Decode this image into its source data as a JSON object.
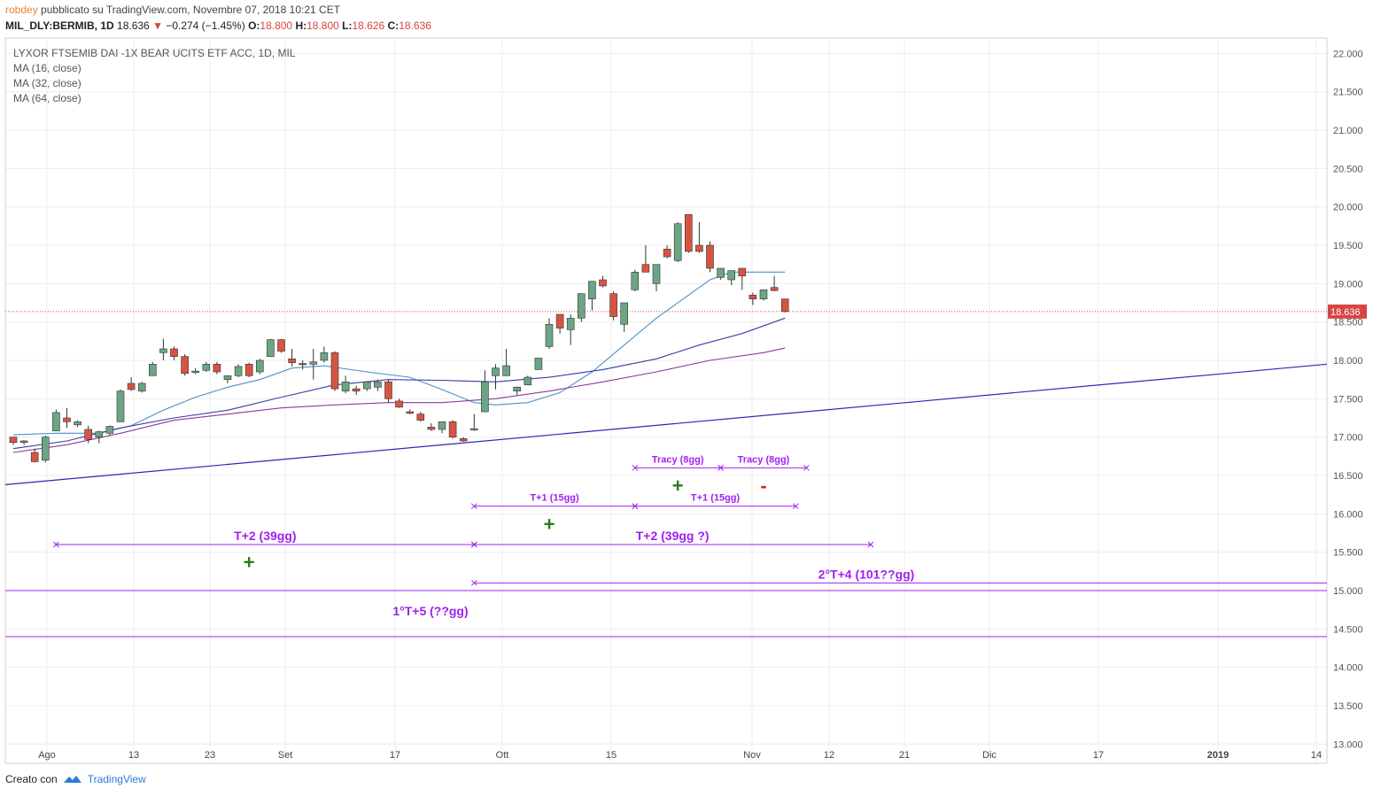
{
  "header": {
    "author": "robdey",
    "published": "pubblicato su TradingView.com, Novembre 07, 2018 10:21 CET",
    "symbol": "MIL_DLY:BERMIB, 1D",
    "last": "18.636",
    "change_arrow": "▼",
    "change": "−0.274 (−1.45%)",
    "o_label": "O:",
    "o_val": "18.800",
    "h_label": "H:",
    "h_val": "18.800",
    "l_label": "L:",
    "l_val": "18.626",
    "c_label": "C:",
    "c_val": "18.636"
  },
  "legend": {
    "title": "LYXOR FTSEMIB DAI -1X BEAR UCITS ETF ACC, 1D, MIL",
    "ma1": "MA (16, close)",
    "ma2": "MA (32, close)",
    "ma3": "MA (64, close)"
  },
  "footer": {
    "created": "Creato con",
    "brand": "TradingView"
  },
  "colors": {
    "up": "#6ba583",
    "down": "#d75442",
    "ma16": "#4a90c8",
    "ma32": "#3a3aa8",
    "ma64": "#8a3a9a",
    "trend": "#2a2ab0",
    "annot": "#a020f0",
    "plus": "#2a7a1a",
    "minus": "#e02020",
    "price_line": "#d64545"
  },
  "chart_data": {
    "type": "candlestick",
    "ylim": [
      12.75,
      22.2
    ],
    "y_ticks": [
      "22.000",
      "21.500",
      "21.000",
      "20.500",
      "20.000",
      "19.500",
      "19.000",
      "18.500",
      "18.000",
      "17.500",
      "17.000",
      "16.500",
      "16.000",
      "15.500",
      "15.000",
      "14.500",
      "14.000",
      "13.500",
      "13.000"
    ],
    "x_ticks": [
      "Ago",
      "13",
      "23",
      "Set",
      "17",
      "Ott",
      "15",
      "Nov",
      "12",
      "21",
      "Dic",
      "17",
      "2019",
      "14"
    ],
    "last_price_label": "18.636",
    "candles": [
      [
        17.0,
        17.0,
        16.9,
        16.93
      ],
      [
        16.93,
        16.96,
        16.9,
        16.95
      ],
      [
        16.8,
        16.85,
        16.67,
        16.68
      ],
      [
        16.7,
        17.02,
        16.67,
        17.0
      ],
      [
        17.08,
        17.36,
        17.08,
        17.32
      ],
      [
        17.25,
        17.38,
        17.12,
        17.2
      ],
      [
        17.16,
        17.22,
        17.13,
        17.2
      ],
      [
        17.1,
        17.15,
        16.92,
        16.97
      ],
      [
        17.0,
        17.08,
        16.92,
        17.07
      ],
      [
        17.05,
        17.15,
        17.02,
        17.14
      ],
      [
        17.2,
        17.62,
        17.2,
        17.6
      ],
      [
        17.7,
        17.78,
        17.6,
        17.62
      ],
      [
        17.6,
        17.72,
        17.58,
        17.7
      ],
      [
        17.8,
        17.98,
        17.8,
        17.95
      ],
      [
        18.1,
        18.28,
        18.0,
        18.15
      ],
      [
        18.15,
        18.18,
        18.0,
        18.05
      ],
      [
        18.05,
        18.08,
        17.8,
        17.83
      ],
      [
        17.85,
        17.9,
        17.82,
        17.86
      ],
      [
        17.87,
        17.98,
        17.85,
        17.95
      ],
      [
        17.95,
        17.98,
        17.82,
        17.85
      ],
      [
        17.75,
        17.8,
        17.7,
        17.8
      ],
      [
        17.8,
        17.95,
        17.78,
        17.92
      ],
      [
        17.95,
        17.97,
        17.78,
        17.8
      ],
      [
        17.85,
        18.02,
        17.82,
        18.0
      ],
      [
        18.05,
        18.28,
        18.05,
        18.27
      ],
      [
        18.27,
        18.28,
        18.1,
        18.12
      ],
      [
        18.02,
        18.15,
        17.92,
        17.97
      ],
      [
        17.96,
        18.0,
        17.88,
        17.95
      ],
      [
        17.95,
        18.15,
        17.75,
        17.98
      ],
      [
        18.0,
        18.18,
        17.97,
        18.1
      ],
      [
        18.1,
        18.12,
        17.6,
        17.63
      ],
      [
        17.6,
        17.8,
        17.57,
        17.72
      ],
      [
        17.63,
        17.67,
        17.55,
        17.6
      ],
      [
        17.63,
        17.73,
        17.6,
        17.72
      ],
      [
        17.65,
        17.75,
        17.6,
        17.72
      ],
      [
        17.72,
        17.74,
        17.45,
        17.5
      ],
      [
        17.47,
        17.5,
        17.38,
        17.39
      ],
      [
        17.33,
        17.36,
        17.3,
        17.31
      ],
      [
        17.3,
        17.33,
        17.2,
        17.22
      ],
      [
        17.13,
        17.18,
        17.08,
        17.1
      ],
      [
        17.1,
        17.2,
        17.05,
        17.2
      ],
      [
        17.2,
        17.22,
        16.98,
        17.0
      ],
      [
        16.98,
        17.0,
        16.94,
        16.95
      ],
      [
        17.1,
        17.3,
        17.08,
        17.11
      ],
      [
        17.33,
        17.87,
        17.33,
        17.72
      ],
      [
        17.8,
        17.95,
        17.62,
        17.9
      ],
      [
        17.8,
        18.15,
        17.8,
        17.93
      ],
      [
        17.6,
        17.66,
        17.55,
        17.65
      ],
      [
        17.68,
        17.8,
        17.68,
        17.78
      ],
      [
        17.88,
        18.03,
        17.88,
        18.03
      ],
      [
        18.18,
        18.55,
        18.15,
        18.47
      ],
      [
        18.6,
        18.6,
        18.35,
        18.42
      ],
      [
        18.4,
        18.6,
        18.2,
        18.55
      ],
      [
        18.55,
        18.87,
        18.5,
        18.87
      ],
      [
        18.8,
        19.03,
        18.65,
        19.03
      ],
      [
        19.05,
        19.1,
        18.95,
        18.97
      ],
      [
        18.87,
        18.9,
        18.52,
        18.57
      ],
      [
        18.47,
        18.75,
        18.37,
        18.75
      ],
      [
        18.92,
        19.18,
        18.9,
        19.15
      ],
      [
        19.25,
        19.5,
        19.15,
        19.15
      ],
      [
        19.0,
        19.25,
        18.9,
        19.25
      ],
      [
        19.45,
        19.5,
        19.33,
        19.35
      ],
      [
        19.3,
        19.8,
        19.28,
        19.78
      ],
      [
        19.9,
        19.9,
        19.4,
        19.42
      ],
      [
        19.5,
        19.8,
        19.4,
        19.42
      ],
      [
        19.5,
        19.55,
        19.15,
        19.2
      ],
      [
        19.08,
        19.2,
        19.05,
        19.2
      ],
      [
        19.05,
        19.17,
        18.98,
        19.17
      ],
      [
        19.2,
        19.2,
        18.92,
        19.1
      ],
      [
        18.85,
        18.88,
        18.72,
        18.8
      ],
      [
        18.8,
        18.92,
        18.78,
        18.92
      ],
      [
        18.95,
        19.1,
        18.9,
        18.91
      ],
      [
        18.8,
        18.8,
        18.626,
        18.636
      ]
    ],
    "ma16": [
      [
        0,
        17.03
      ],
      [
        4,
        17.05
      ],
      [
        8,
        17.05
      ],
      [
        11,
        17.15
      ],
      [
        14,
        17.35
      ],
      [
        17,
        17.52
      ],
      [
        20,
        17.65
      ],
      [
        23,
        17.75
      ],
      [
        26,
        17.9
      ],
      [
        29,
        17.93
      ],
      [
        33,
        17.85
      ],
      [
        37,
        17.78
      ],
      [
        40,
        17.62
      ],
      [
        43,
        17.45
      ],
      [
        45,
        17.42
      ],
      [
        48,
        17.45
      ],
      [
        51,
        17.58
      ],
      [
        54,
        17.85
      ],
      [
        57,
        18.2
      ],
      [
        60,
        18.55
      ],
      [
        63,
        18.85
      ],
      [
        65,
        19.05
      ],
      [
        67,
        19.15
      ],
      [
        70,
        19.15
      ],
      [
        72,
        19.15
      ]
    ],
    "ma32": [
      [
        0,
        16.85
      ],
      [
        5,
        16.95
      ],
      [
        10,
        17.12
      ],
      [
        15,
        17.25
      ],
      [
        20,
        17.35
      ],
      [
        25,
        17.52
      ],
      [
        30,
        17.68
      ],
      [
        35,
        17.75
      ],
      [
        40,
        17.74
      ],
      [
        45,
        17.72
      ],
      [
        50,
        17.78
      ],
      [
        55,
        17.88
      ],
      [
        60,
        18.02
      ],
      [
        64,
        18.2
      ],
      [
        68,
        18.35
      ],
      [
        72,
        18.55
      ]
    ],
    "ma64": [
      [
        0,
        16.8
      ],
      [
        5,
        16.9
      ],
      [
        10,
        17.05
      ],
      [
        15,
        17.22
      ],
      [
        20,
        17.3
      ],
      [
        25,
        17.38
      ],
      [
        30,
        17.42
      ],
      [
        35,
        17.45
      ],
      [
        40,
        17.45
      ],
      [
        45,
        17.5
      ],
      [
        50,
        17.6
      ],
      [
        55,
        17.72
      ],
      [
        60,
        17.85
      ],
      [
        65,
        18.0
      ],
      [
        70,
        18.1
      ],
      [
        72,
        18.16
      ]
    ],
    "annotations": [
      {
        "text": "Tracy (8gg)",
        "price": 16.6,
        "from": 58,
        "to": 66
      },
      {
        "text": "Tracy (8gg)",
        "price": 16.6,
        "from": 66,
        "to": 74
      },
      {
        "text": "T+1 (15gg)",
        "price": 16.1,
        "from": 43,
        "to": 58
      },
      {
        "text": "T+1 (15gg)",
        "price": 16.1,
        "from": 58,
        "to": 73
      },
      {
        "text": "T+2 (39gg)",
        "price": 15.6,
        "from": 4,
        "to": 43
      },
      {
        "text": "T+2 (39gg ?)",
        "price": 15.6,
        "from": 43,
        "to": 80
      },
      {
        "text": "2°T+4 (101??gg)",
        "price": 15.1,
        "from": 43,
        "to": -1
      },
      {
        "text": "1°T+5 (??gg)",
        "price": 14.62,
        "from": -1,
        "to": -1
      }
    ],
    "markers": [
      {
        "symbol": "+",
        "price": 16.35,
        "index": 62
      },
      {
        "symbol": "-",
        "price": 16.35,
        "index": 70
      },
      {
        "symbol": "+",
        "price": 15.85,
        "index": 50
      },
      {
        "symbol": "+",
        "price": 15.35,
        "index": 22
      }
    ]
  }
}
